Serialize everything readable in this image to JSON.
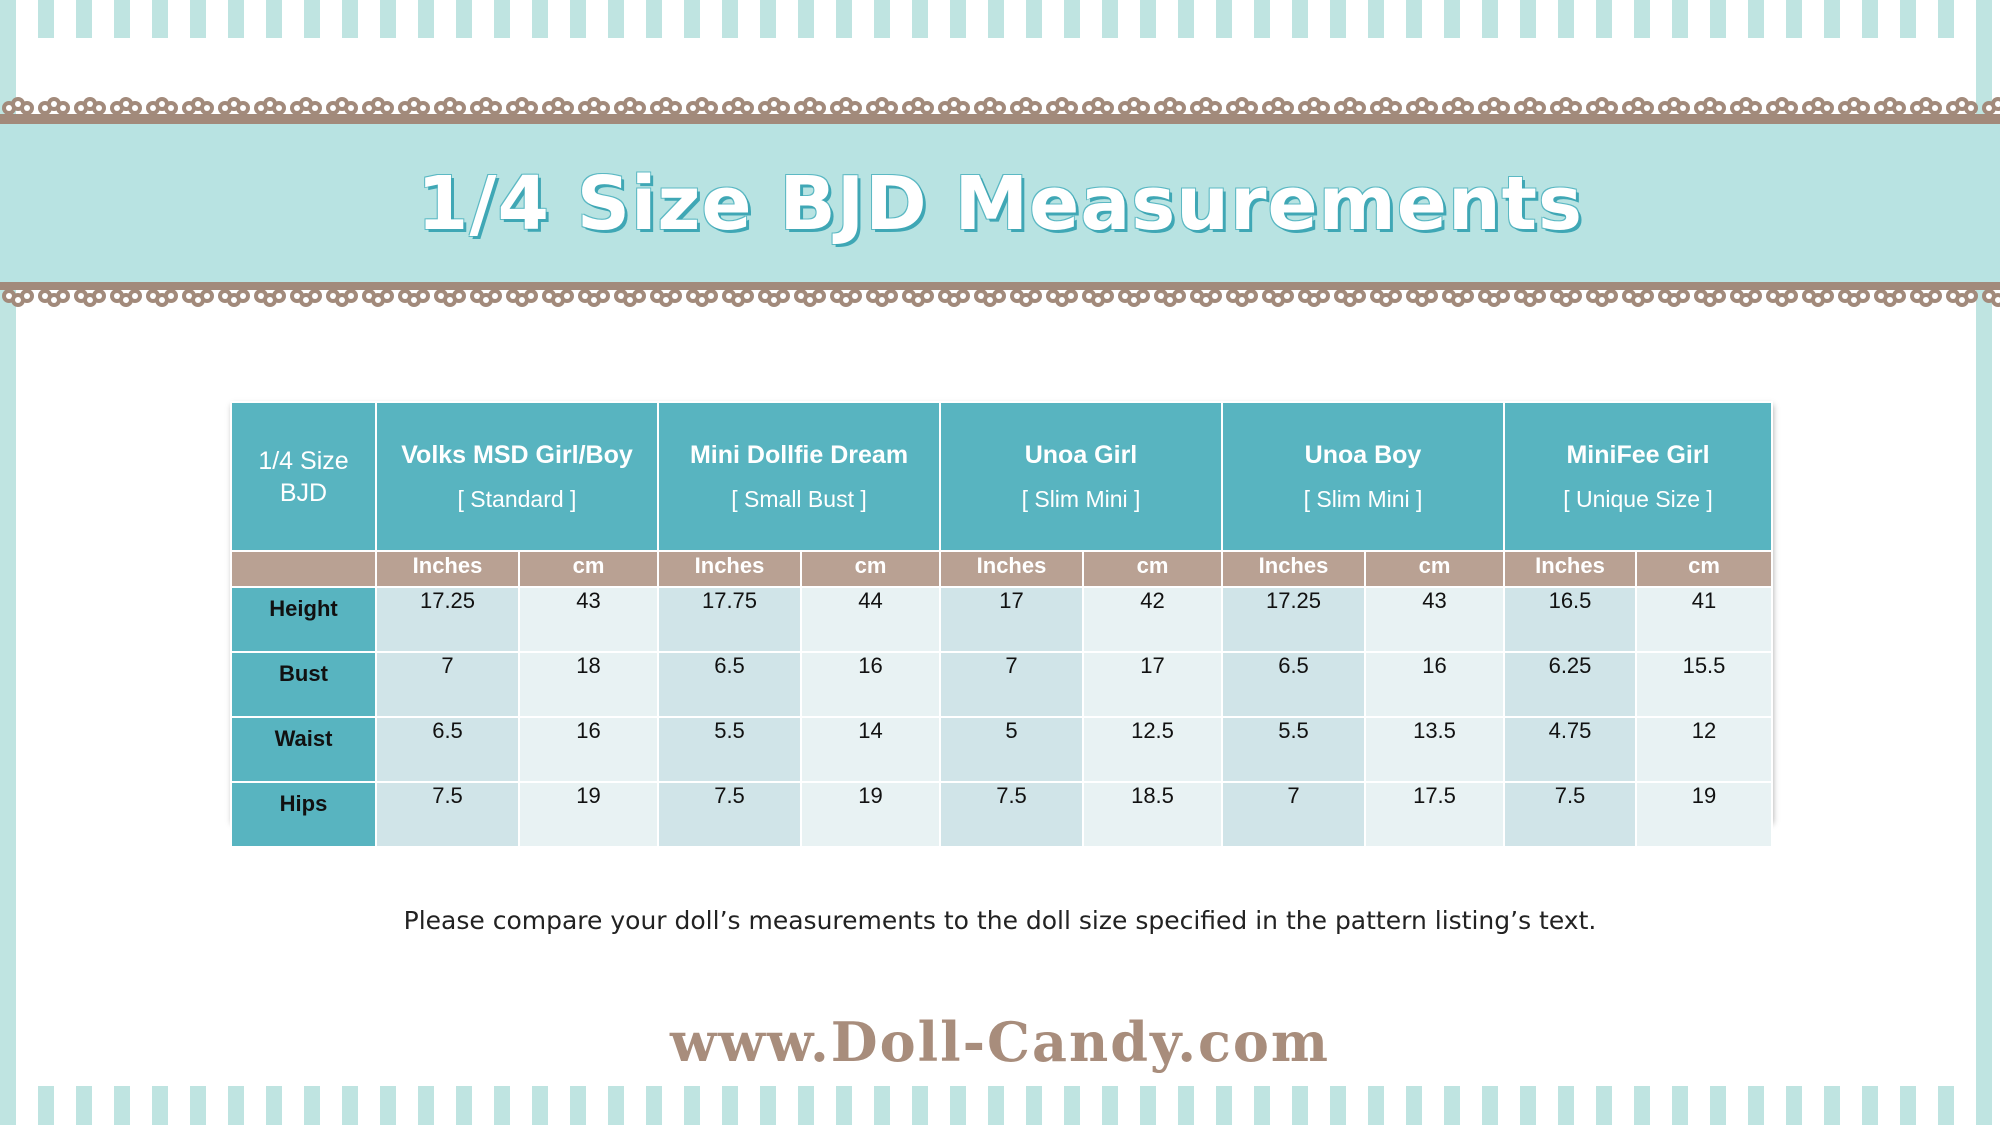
{
  "colors": {
    "teal": "#58b4c0",
    "banner": "#b8e3e2",
    "lace": "#a28a7b",
    "unit_row": "#b9a193",
    "cell_inches": "#d0e4e8",
    "cell_cm": "#e8f2f3",
    "site_text": "#a88d7c"
  },
  "banner": {
    "title": "1/4 Size BJD Measurements"
  },
  "table": {
    "corner_line1": "1/4 Size",
    "corner_line2": "BJD",
    "dolls": [
      {
        "name": "Volks MSD Girl/Boy",
        "sub": "[ Standard ]"
      },
      {
        "name": "Mini Dollfie Dream",
        "sub": "[ Small Bust ]"
      },
      {
        "name": "Unoa Girl",
        "sub": "[ Slim Mini ]"
      },
      {
        "name": "Unoa Boy",
        "sub": "[ Slim Mini ]"
      },
      {
        "name": "MiniFee Girl",
        "sub": "[ Unique Size ]"
      }
    ],
    "units": {
      "inches": "Inches",
      "cm": "cm"
    },
    "rows": [
      {
        "label": "Height",
        "values": [
          "17.25",
          "43",
          "17.75",
          "44",
          "17",
          "42",
          "17.25",
          "43",
          "16.5",
          "41"
        ]
      },
      {
        "label": "Bust",
        "values": [
          "7",
          "18",
          "6.5",
          "16",
          "7",
          "17",
          "6.5",
          "16",
          "6.25",
          "15.5"
        ]
      },
      {
        "label": "Waist",
        "values": [
          "6.5",
          "16",
          "5.5",
          "14",
          "5",
          "12.5",
          "5.5",
          "13.5",
          "4.75",
          "12"
        ]
      },
      {
        "label": "Hips",
        "values": [
          "7.5",
          "19",
          "7.5",
          "19",
          "7.5",
          "18.5",
          "7",
          "17.5",
          "7.5",
          "19"
        ]
      }
    ]
  },
  "note": "Please compare your doll’s measurements to the doll size specified in the pattern listing’s text.",
  "website": "www.Doll-Candy.com"
}
